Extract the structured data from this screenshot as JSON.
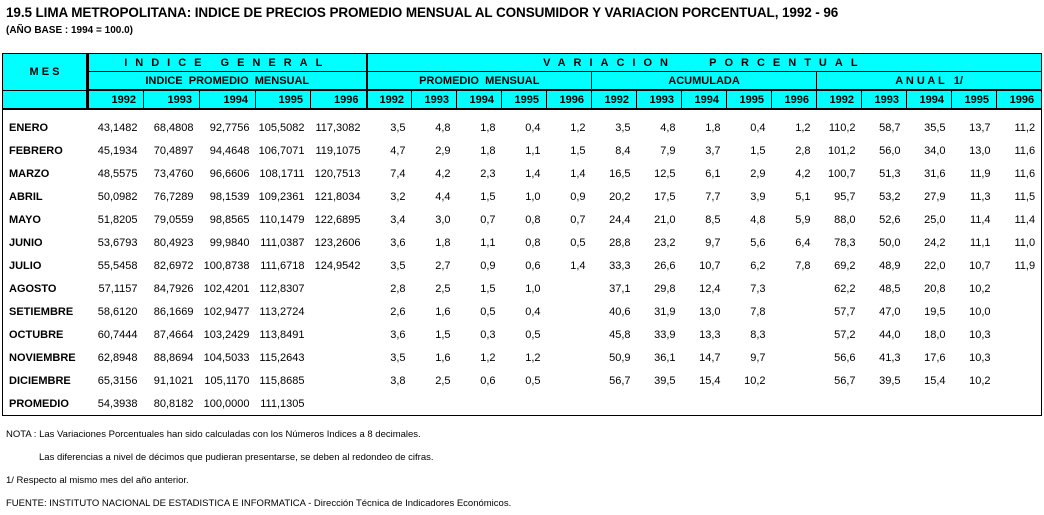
{
  "title": "19.5  LIMA METROPOLITANA: INDICE DE PRECIOS PROMEDIO MENSUAL AL CONSUMIDOR Y VARIACION PORCENTUAL, 1992 - 96",
  "subtitle": "(AÑO BASE : 1994 = 100.0)",
  "header": {
    "mes": "M E S",
    "indice_general": "INDICE GENERAL",
    "indice_promedio_mensual": "INDICE  PROMEDIO  MENSUAL",
    "variacion_porcentual": "VARIACION   PORCENTUAL",
    "promedio_mensual": "PROMEDIO  MENSUAL",
    "acumulada": "ACUMULADA",
    "anual": "A N U A L   1/",
    "years": [
      "1992",
      "1993",
      "1994",
      "1995",
      "1996"
    ]
  },
  "rows": [
    [
      "ENERO",
      "43,1482",
      "68,4808",
      "92,7756",
      "105,5082",
      "117,3082",
      "3,5",
      "4,8",
      "1,8",
      "0,4",
      "1,2",
      "3,5",
      "4,8",
      "1,8",
      "0,4",
      "1,2",
      "110,2",
      "58,7",
      "35,5",
      "13,7",
      "11,2"
    ],
    [
      "FEBRERO",
      "45,1934",
      "70,4897",
      "94,4648",
      "106,7071",
      "119,1075",
      "4,7",
      "2,9",
      "1,8",
      "1,1",
      "1,5",
      "8,4",
      "7,9",
      "3,7",
      "1,5",
      "2,8",
      "101,2",
      "56,0",
      "34,0",
      "13,0",
      "11,6"
    ],
    [
      "MARZO",
      "48,5575",
      "73,4760",
      "96,6606",
      "108,1711",
      "120,7513",
      "7,4",
      "4,2",
      "2,3",
      "1,4",
      "1,4",
      "16,5",
      "12,5",
      "6,1",
      "2,9",
      "4,2",
      "100,7",
      "51,3",
      "31,6",
      "11,9",
      "11,6"
    ],
    [
      "ABRIL",
      "50,0982",
      "76,7289",
      "98,1539",
      "109,2361",
      "121,8034",
      "3,2",
      "4,4",
      "1,5",
      "1,0",
      "0,9",
      "20,2",
      "17,5",
      "7,7",
      "3,9",
      "5,1",
      "95,7",
      "53,2",
      "27,9",
      "11,3",
      "11,5"
    ],
    [
      "MAYO",
      "51,8205",
      "79,0559",
      "98,8565",
      "110,1479",
      "122,6895",
      "3,4",
      "3,0",
      "0,7",
      "0,8",
      "0,7",
      "24,4",
      "21,0",
      "8,5",
      "4,8",
      "5,9",
      "88,0",
      "52,6",
      "25,0",
      "11,4",
      "11,4"
    ],
    [
      "JUNIO",
      "53,6793",
      "80,4923",
      "99,9840",
      "111,0387",
      "123,2606",
      "3,6",
      "1,8",
      "1,1",
      "0,8",
      "0,5",
      "28,8",
      "23,2",
      "9,7",
      "5,6",
      "6,4",
      "78,3",
      "50,0",
      "24,2",
      "11,1",
      "11,0"
    ],
    [
      "JULIO",
      "55,5458",
      "82,6972",
      "100,8738",
      "111,6718",
      "124,9542",
      "3,5",
      "2,7",
      "0,9",
      "0,6",
      "1,4",
      "33,3",
      "26,6",
      "10,7",
      "6,2",
      "7,8",
      "69,2",
      "48,9",
      "22,0",
      "10,7",
      "11,9"
    ],
    [
      "AGOSTO",
      "57,1157",
      "84,7926",
      "102,4201",
      "112,8307",
      "",
      "2,8",
      "2,5",
      "1,5",
      "1,0",
      "",
      "37,1",
      "29,8",
      "12,4",
      "7,3",
      "",
      "62,2",
      "48,5",
      "20,8",
      "10,2",
      ""
    ],
    [
      "SETIEMBRE",
      "58,6120",
      "86,1669",
      "102,9477",
      "113,2724",
      "",
      "2,6",
      "1,6",
      "0,5",
      "0,4",
      "",
      "40,6",
      "31,9",
      "13,0",
      "7,8",
      "",
      "57,7",
      "47,0",
      "19,5",
      "10,0",
      ""
    ],
    [
      "OCTUBRE",
      "60,7444",
      "87,4664",
      "103,2429",
      "113,8491",
      "",
      "3,6",
      "1,5",
      "0,3",
      "0,5",
      "",
      "45,8",
      "33,9",
      "13,3",
      "8,3",
      "",
      "57,2",
      "44,0",
      "18,0",
      "10,3",
      ""
    ],
    [
      "NOVIEMBRE",
      "62,8948",
      "88,8694",
      "104,5033",
      "115,2643",
      "",
      "3,5",
      "1,6",
      "1,2",
      "1,2",
      "",
      "50,9",
      "36,1",
      "14,7",
      "9,7",
      "",
      "56,6",
      "41,3",
      "17,6",
      "10,3",
      ""
    ],
    [
      "DICIEMBRE",
      "65,3156",
      "91,1021",
      "105,1170",
      "115,8685",
      "",
      "3,8",
      "2,5",
      "0,6",
      "0,5",
      "",
      "56,7",
      "39,5",
      "15,4",
      "10,2",
      "",
      "56,7",
      "39,5",
      "15,4",
      "10,2",
      ""
    ],
    [
      "PROMEDIO",
      "54,3938",
      "80,8182",
      "100,0000",
      "111,1305",
      "",
      "",
      "",
      "",
      "",
      "",
      "",
      "",
      "",
      "",
      "",
      "",
      "",
      "",
      "",
      ""
    ]
  ],
  "notes": {
    "nota1": "NOTA : Las Variaciones Porcentuales han sido calculadas con los Números Indices a 8 decimales.",
    "nota2": "Las diferencias a nivel de décimos que pudieran presentarse, se deben al redondeo de cifras.",
    "footnote": "1/ Respecto al mismo mes del año anterior.",
    "fuente": "FUENTE: INSTITUTO NACIONAL DE ESTADISTICA E INFORMATICA - Dirección Técnica de Indicadores Económicos."
  },
  "colors": {
    "header_bg": "#00ffff"
  }
}
